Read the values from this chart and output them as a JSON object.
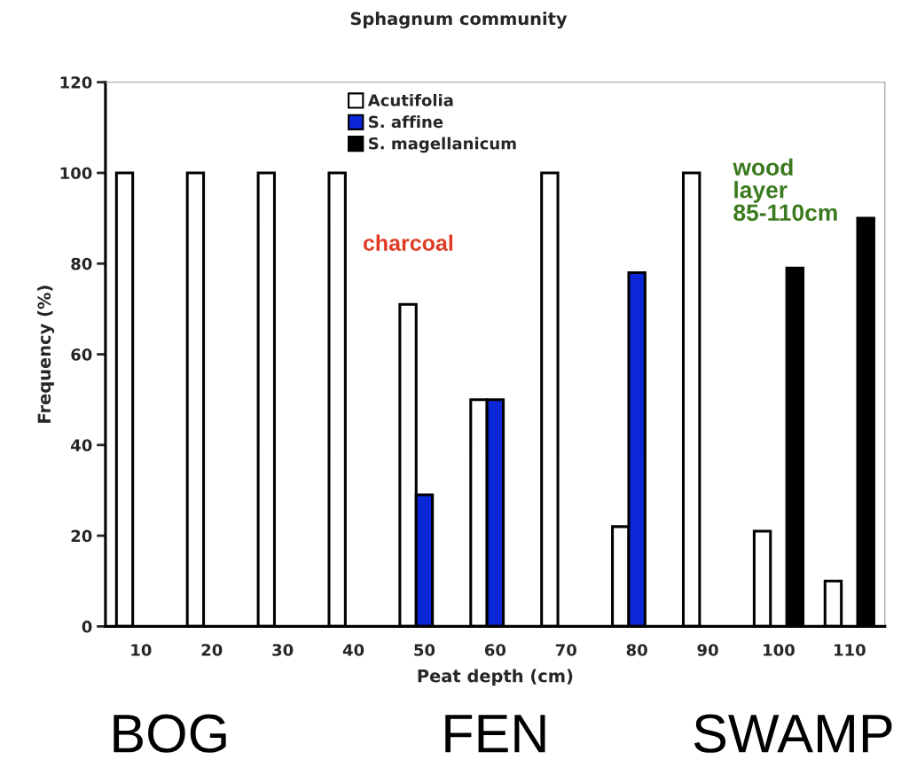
{
  "chart_data": {
    "type": "bar",
    "title": "Sphagnum community",
    "xlabel": "Peat depth (cm)",
    "ylabel": "Frequency (%)",
    "categories": [
      "10",
      "20",
      "30",
      "40",
      "50",
      "60",
      "70",
      "80",
      "90",
      "100",
      "110"
    ],
    "series": [
      {
        "name": "Acutifolia",
        "color": "#ffffff",
        "values": [
          100,
          100,
          100,
          100,
          71,
          50,
          100,
          22,
          100,
          21,
          10
        ]
      },
      {
        "name": "S. affine",
        "color": "#0c27d8",
        "values": [
          null,
          null,
          null,
          null,
          29,
          50,
          null,
          78,
          null,
          null,
          null
        ]
      },
      {
        "name": "S. magellanicum",
        "color": "#000000",
        "values": [
          null,
          null,
          null,
          null,
          null,
          null,
          null,
          null,
          null,
          79,
          90
        ]
      }
    ],
    "ylim": [
      0,
      120
    ],
    "yticks": [
      0,
      20,
      40,
      60,
      80,
      100,
      120
    ],
    "grid": false,
    "legend": "top",
    "annotations": [
      "charcoal",
      "wood layer 85-110cm",
      "BOG",
      "FEN",
      "SWAMP"
    ]
  }
}
